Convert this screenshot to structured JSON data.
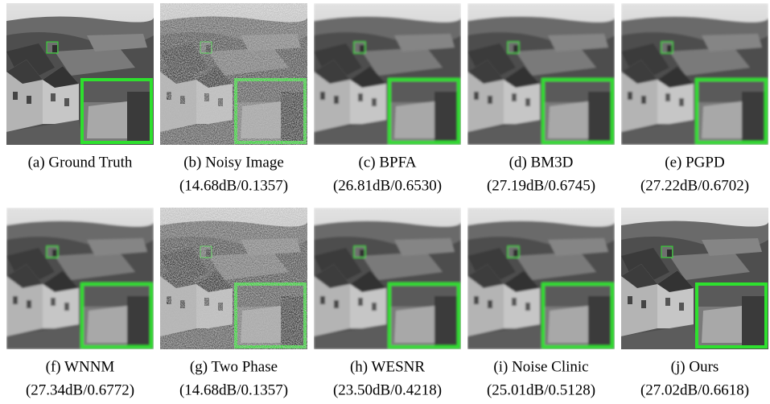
{
  "panels": [
    {
      "label": "(a) Ground Truth"
    },
    {
      "label": "(b) Noisy Image",
      "metrics": "(14.68dB/0.1357)"
    },
    {
      "label": "(c) BPFA",
      "metrics": "(26.81dB/0.6530)"
    },
    {
      "label": "(d) BM3D",
      "metrics": "(27.19dB/0.6745)"
    },
    {
      "label": "(e) PGPD",
      "metrics": "(27.22dB/0.6702)"
    },
    {
      "label": "(f) WNNM",
      "metrics": "(27.34dB/0.6772)"
    },
    {
      "label": "(g) Two Phase",
      "metrics": "(14.68dB/0.1357)"
    },
    {
      "label": "(h) WESNR",
      "metrics": "(23.50dB/0.4218)"
    },
    {
      "label": "(i) Noise Clinic",
      "metrics": "(25.01dB/0.5128)"
    },
    {
      "label": "(j) Ours",
      "metrics": "(27.02dB/0.6618)"
    }
  ]
}
